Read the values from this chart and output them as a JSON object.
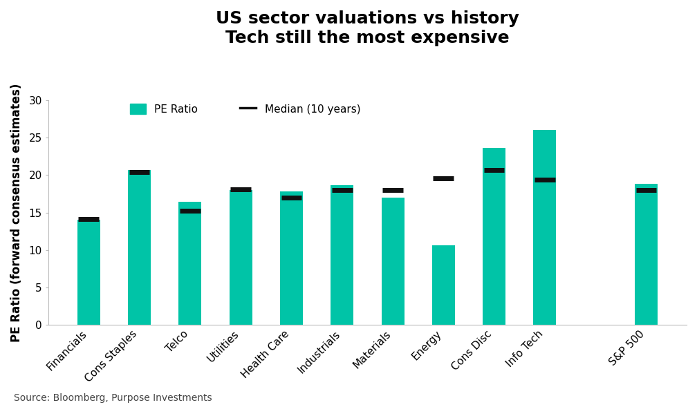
{
  "title_line1": "US sector valuations vs history",
  "title_line2": "Tech still the most expensive",
  "ylabel": "PE Ratio (forward consensus estimates)",
  "source": "Source: Bloomberg, Purpose Investments",
  "categories": [
    "Financials",
    "Cons Staples",
    "Telco",
    "Utilities",
    "Health Care",
    "Industrials",
    "Materials",
    "Energy",
    "Cons Disc",
    "Info Tech",
    "",
    "S&P 500"
  ],
  "pe_values": [
    14.0,
    20.7,
    16.4,
    18.0,
    17.8,
    18.7,
    17.0,
    10.6,
    23.6,
    26.0,
    null,
    18.8
  ],
  "median_values": [
    14.1,
    20.4,
    15.2,
    18.1,
    17.0,
    18.0,
    18.0,
    19.6,
    20.7,
    19.4,
    null,
    18.0
  ],
  "bar_color": "#00C4A7",
  "median_color": "#111111",
  "ylim": [
    0,
    30
  ],
  "yticks": [
    0,
    5,
    10,
    15,
    20,
    25,
    30
  ],
  "title_fontsize": 18,
  "axis_label_fontsize": 12,
  "tick_fontsize": 11,
  "source_fontsize": 10,
  "background_color": "#ffffff"
}
